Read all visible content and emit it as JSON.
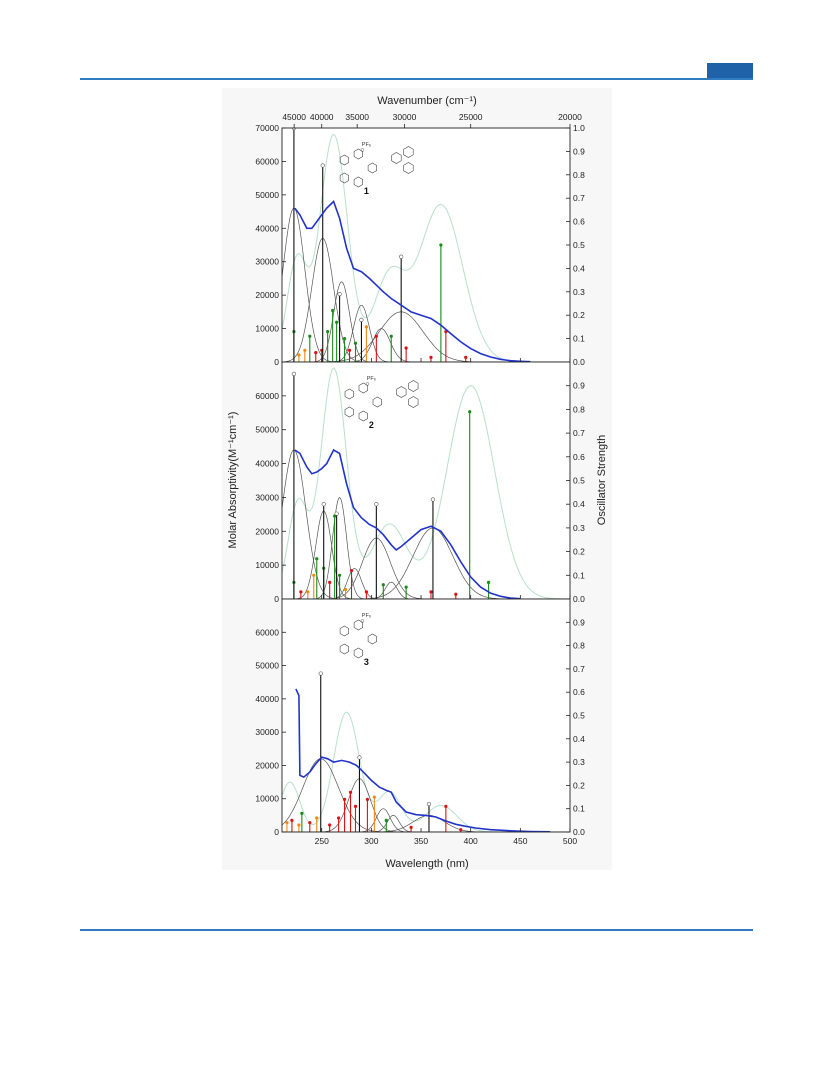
{
  "page": {
    "accent_color": "#2f7dc0"
  },
  "chart_data": {
    "type": "line",
    "top_xlabel": "Wavenumber (cm⁻¹)",
    "top_ticks": [
      45000,
      40000,
      35000,
      30000,
      25000,
      20000
    ],
    "xlabel": "Wavelength (nm)",
    "ylabel": "Molar Absorptivity(M⁻¹cm⁻¹)",
    "y2label": "Oscillator Strength",
    "xlim": [
      210,
      500
    ],
    "xticks": [
      250,
      300,
      350,
      400,
      450,
      500
    ],
    "series_colors": {
      "experimental": "#2233cc",
      "gaussian": "#555555",
      "computed": "#b8e0cc",
      "stick_major": "#111111",
      "stick_green": "#1a8a1a",
      "stick_red": "#dd1111",
      "stick_orange": "#ee8a10"
    },
    "panels": [
      {
        "label": "1",
        "counterion": "PF₆",
        "ylim": [
          0,
          70000
        ],
        "yticks": [
          0,
          10000,
          20000,
          30000,
          40000,
          50000,
          60000,
          70000
        ],
        "y2ticks": [
          0.0,
          0.1,
          0.2,
          0.3,
          0.4,
          0.5,
          0.6,
          0.7,
          0.8,
          0.9,
          1.0
        ],
        "experimental": {
          "x": [
            223,
            228,
            235,
            240,
            245,
            250,
            255,
            262,
            268,
            275,
            282,
            290,
            298,
            305,
            312,
            320,
            330,
            340,
            350,
            360,
            370,
            380,
            390,
            400,
            410,
            420,
            430,
            440,
            450,
            460
          ],
          "y": [
            46000,
            44000,
            40000,
            40000,
            42000,
            44000,
            46000,
            48000,
            43000,
            34000,
            28000,
            27000,
            25000,
            23000,
            21000,
            19000,
            17000,
            15000,
            14000,
            13000,
            11000,
            8500,
            6000,
            4000,
            2500,
            1500,
            800,
            400,
            200,
            80
          ]
        },
        "gaussians": [
          {
            "center": 222,
            "height": 46000,
            "width": 11
          },
          {
            "center": 251,
            "height": 37000,
            "width": 11
          },
          {
            "center": 270,
            "height": 24000,
            "width": 8
          },
          {
            "center": 290,
            "height": 17000,
            "width": 8
          },
          {
            "center": 310,
            "height": 10000,
            "width": 9
          },
          {
            "center": 330,
            "height": 15000,
            "width": 22
          }
        ],
        "computed": {
          "peaks": [
            {
              "center": 225,
              "height": 30000,
              "width": 10
            },
            {
              "center": 262,
              "height": 68000,
              "width": 14
            },
            {
              "center": 318,
              "height": 25000,
              "width": 16
            },
            {
              "center": 370,
              "height": 47000,
              "width": 22
            }
          ]
        },
        "sticks_major": [
          {
            "x": 222,
            "f": 1.0
          },
          {
            "x": 251,
            "f": 0.84
          },
          {
            "x": 268,
            "f": 0.29
          },
          {
            "x": 290,
            "f": 0.18
          },
          {
            "x": 330,
            "f": 0.45
          }
        ],
        "sticks_minor": [
          {
            "x": 222,
            "f": 0.13,
            "c": "stick_green"
          },
          {
            "x": 227,
            "f": 0.03,
            "c": "stick_orange"
          },
          {
            "x": 233,
            "f": 0.05,
            "c": "stick_orange"
          },
          {
            "x": 238,
            "f": 0.11,
            "c": "stick_green"
          },
          {
            "x": 244,
            "f": 0.04,
            "c": "stick_red"
          },
          {
            "x": 250,
            "f": 0.05,
            "c": "stick_red"
          },
          {
            "x": 256,
            "f": 0.13,
            "c": "stick_green"
          },
          {
            "x": 261,
            "f": 0.22,
            "c": "stick_green"
          },
          {
            "x": 265,
            "f": 0.17,
            "c": "stick_green"
          },
          {
            "x": 273,
            "f": 0.1,
            "c": "stick_green"
          },
          {
            "x": 278,
            "f": 0.05,
            "c": "stick_red"
          },
          {
            "x": 284,
            "f": 0.08,
            "c": "stick_green"
          },
          {
            "x": 295,
            "f": 0.15,
            "c": "stick_orange"
          },
          {
            "x": 305,
            "f": 0.11,
            "c": "stick_red"
          },
          {
            "x": 320,
            "f": 0.11,
            "c": "stick_green"
          },
          {
            "x": 335,
            "f": 0.06,
            "c": "stick_red"
          },
          {
            "x": 370,
            "f": 0.5,
            "c": "stick_green"
          },
          {
            "x": 375,
            "f": 0.13,
            "c": "stick_red"
          },
          {
            "x": 360,
            "f": 0.02,
            "c": "stick_red"
          },
          {
            "x": 395,
            "f": 0.02,
            "c": "stick_red"
          }
        ]
      },
      {
        "label": "2",
        "counterion": "PF₆",
        "ylim": [
          0,
          70000
        ],
        "yticks": [
          0,
          10000,
          20000,
          30000,
          40000,
          50000,
          60000
        ],
        "y2ticks": [
          0.0,
          0.1,
          0.2,
          0.3,
          0.4,
          0.5,
          0.6,
          0.7,
          0.8,
          0.9
        ],
        "experimental": {
          "x": [
            223,
            228,
            235,
            240,
            245,
            250,
            255,
            262,
            268,
            275,
            282,
            290,
            298,
            305,
            312,
            320,
            325,
            330,
            340,
            350,
            360,
            370,
            380,
            390,
            400,
            410,
            420,
            430,
            440,
            450
          ],
          "y": [
            44000,
            43000,
            39000,
            37000,
            37500,
            38500,
            40000,
            44000,
            43000,
            34000,
            27000,
            24000,
            22000,
            21000,
            19000,
            16000,
            14500,
            15500,
            18000,
            20500,
            21500,
            20000,
            16000,
            11000,
            6500,
            3500,
            1700,
            800,
            300,
            100
          ]
        },
        "gaussians": [
          {
            "center": 222,
            "height": 44000,
            "width": 12
          },
          {
            "center": 252,
            "height": 26000,
            "width": 8
          },
          {
            "center": 268,
            "height": 30000,
            "width": 7
          },
          {
            "center": 283,
            "height": 9000,
            "width": 7
          },
          {
            "center": 305,
            "height": 18000,
            "width": 14
          },
          {
            "center": 320,
            "height": 5000,
            "width": 6
          },
          {
            "center": 362,
            "height": 21000,
            "width": 20
          }
        ],
        "computed": {
          "peaks": [
            {
              "center": 226,
              "height": 28000,
              "width": 10
            },
            {
              "center": 262,
              "height": 68000,
              "width": 13
            },
            {
              "center": 318,
              "height": 22000,
              "width": 18
            },
            {
              "center": 400,
              "height": 63000,
              "width": 24
            }
          ]
        },
        "sticks_major": [
          {
            "x": 222,
            "f": 0.95
          },
          {
            "x": 252,
            "f": 0.4
          },
          {
            "x": 265,
            "f": 0.36
          },
          {
            "x": 305,
            "f": 0.4
          },
          {
            "x": 362,
            "f": 0.42
          }
        ],
        "sticks_minor": [
          {
            "x": 222,
            "f": 0.07,
            "c": "stick_green"
          },
          {
            "x": 229,
            "f": 0.03,
            "c": "stick_red"
          },
          {
            "x": 236,
            "f": 0.03,
            "c": "stick_orange"
          },
          {
            "x": 242,
            "f": 0.1,
            "c": "stick_orange"
          },
          {
            "x": 245,
            "f": 0.17,
            "c": "stick_green"
          },
          {
            "x": 252,
            "f": 0.13,
            "c": "stick_green"
          },
          {
            "x": 258,
            "f": 0.07,
            "c": "stick_red"
          },
          {
            "x": 263,
            "f": 0.35,
            "c": "stick_green"
          },
          {
            "x": 268,
            "f": 0.1,
            "c": "stick_green"
          },
          {
            "x": 274,
            "f": 0.04,
            "c": "stick_orange"
          },
          {
            "x": 280,
            "f": 0.12,
            "c": "stick_red"
          },
          {
            "x": 295,
            "f": 0.03,
            "c": "stick_red"
          },
          {
            "x": 312,
            "f": 0.06,
            "c": "stick_green"
          },
          {
            "x": 335,
            "f": 0.05,
            "c": "stick_green"
          },
          {
            "x": 360,
            "f": 0.03,
            "c": "stick_red"
          },
          {
            "x": 399,
            "f": 0.79,
            "c": "stick_green"
          },
          {
            "x": 418,
            "f": 0.07,
            "c": "stick_green"
          },
          {
            "x": 385,
            "f": 0.02,
            "c": "stick_red"
          }
        ]
      },
      {
        "label": "3",
        "counterion": "PF₆",
        "ylim": [
          0,
          70000
        ],
        "yticks": [
          0,
          10000,
          20000,
          30000,
          40000,
          50000,
          60000
        ],
        "y2ticks": [
          0.0,
          0.1,
          0.2,
          0.3,
          0.4,
          0.5,
          0.6,
          0.7,
          0.8,
          0.9
        ],
        "experimental": {
          "x": [
            224,
            227,
            228,
            232,
            238,
            244,
            250,
            256,
            262,
            270,
            278,
            285,
            292,
            300,
            308,
            315,
            320,
            325,
            335,
            345,
            355,
            365,
            375,
            385,
            395,
            405,
            420,
            440,
            460,
            480
          ],
          "y": [
            43000,
            41000,
            17000,
            16500,
            18000,
            20500,
            22500,
            22000,
            21000,
            21500,
            21000,
            20000,
            18000,
            15500,
            13500,
            12500,
            12000,
            9000,
            6000,
            5200,
            5000,
            4500,
            3300,
            2300,
            1700,
            1200,
            700,
            350,
            150,
            50
          ]
        },
        "gaussians": [
          {
            "center": 249,
            "height": 22000,
            "width": 18
          },
          {
            "center": 288,
            "height": 16000,
            "width": 11
          },
          {
            "center": 312,
            "height": 7000,
            "width": 7
          },
          {
            "center": 322,
            "height": 5000,
            "width": 6
          },
          {
            "center": 358,
            "height": 5000,
            "width": 16
          }
        ],
        "computed": {
          "peaks": [
            {
              "center": 218,
              "height": 15000,
              "width": 10
            },
            {
              "center": 275,
              "height": 36000,
              "width": 13
            },
            {
              "center": 318,
              "height": 12000,
              "width": 12
            },
            {
              "center": 370,
              "height": 8000,
              "width": 16
            }
          ]
        },
        "sticks_major": [
          {
            "x": 249,
            "f": 0.68
          },
          {
            "x": 288,
            "f": 0.32
          },
          {
            "x": 358,
            "f": 0.12
          }
        ],
        "sticks_minor": [
          {
            "x": 215,
            "f": 0.04,
            "c": "stick_orange"
          },
          {
            "x": 220,
            "f": 0.05,
            "c": "stick_red"
          },
          {
            "x": 227,
            "f": 0.03,
            "c": "stick_orange"
          },
          {
            "x": 230,
            "f": 0.08,
            "c": "stick_green"
          },
          {
            "x": 238,
            "f": 0.04,
            "c": "stick_red"
          },
          {
            "x": 245,
            "f": 0.06,
            "c": "stick_orange"
          },
          {
            "x": 258,
            "f": 0.03,
            "c": "stick_red"
          },
          {
            "x": 267,
            "f": 0.06,
            "c": "stick_red"
          },
          {
            "x": 273,
            "f": 0.14,
            "c": "stick_red"
          },
          {
            "x": 279,
            "f": 0.17,
            "c": "stick_red"
          },
          {
            "x": 284,
            "f": 0.11,
            "c": "stick_red"
          },
          {
            "x": 296,
            "f": 0.14,
            "c": "stick_red"
          },
          {
            "x": 303,
            "f": 0.15,
            "c": "stick_orange"
          },
          {
            "x": 315,
            "f": 0.05,
            "c": "stick_green"
          },
          {
            "x": 340,
            "f": 0.02,
            "c": "stick_red"
          },
          {
            "x": 375,
            "f": 0.11,
            "c": "stick_red"
          },
          {
            "x": 390,
            "f": 0.01,
            "c": "stick_red"
          }
        ]
      }
    ]
  }
}
